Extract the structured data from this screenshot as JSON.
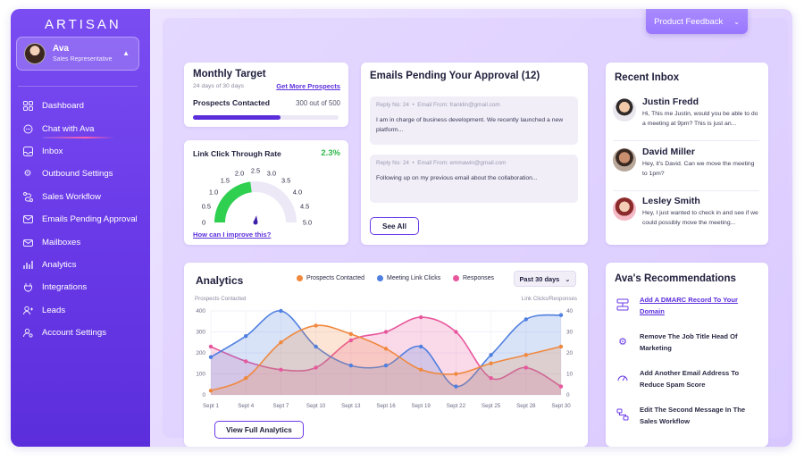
{
  "app": {
    "logo": "ARTISAN"
  },
  "user": {
    "name": "Ava",
    "role": "Sales Representative"
  },
  "sidebar": {
    "items": [
      {
        "label": "Dashboard",
        "icon": "grid-icon"
      },
      {
        "label": "Chat with Ava",
        "icon": "chat-icon",
        "active": true
      },
      {
        "label": "Inbox",
        "icon": "inbox-icon"
      },
      {
        "label": "Outbound Settings",
        "icon": "gear-icon"
      },
      {
        "label": "Sales Workflow",
        "icon": "workflow-icon"
      },
      {
        "label": "Emails Pending Approval",
        "icon": "mail-check-icon"
      },
      {
        "label": "Mailboxes",
        "icon": "mailbox-icon"
      },
      {
        "label": "Analytics",
        "icon": "analytics-icon"
      },
      {
        "label": "Integrations",
        "icon": "integrations-icon"
      },
      {
        "label": "Leads",
        "icon": "leads-icon"
      },
      {
        "label": "Account Settings",
        "icon": "account-gear-icon"
      }
    ]
  },
  "header": {
    "feedback_button": "Product Feedback"
  },
  "monthly_target": {
    "title": "Monthly Target",
    "subtitle": "24 days of 30 days",
    "link": "Get More Prospects",
    "metric_label": "Prospects Contacted",
    "metric_value": "300 out of 500",
    "progress": 0.6
  },
  "ctr": {
    "title": "Link Click Through Rate",
    "value": "2.3%",
    "gauge_value": 2.3,
    "gauge_max": 5.0,
    "ticks": [
      "0",
      "0.5",
      "1.0",
      "1.5",
      "2.0",
      "2.5",
      "3.0",
      "3.5",
      "4.0",
      "4.5",
      "5.0"
    ],
    "help_link": "How can I improve this?"
  },
  "emails_pending": {
    "title": "Emails Pending Your Approval (12)",
    "items": [
      {
        "reply_no": "Reply No: 24",
        "from": "Email From: franklin@gmail.com",
        "body": "I am in charge of business development. We recently launched a new platform..."
      },
      {
        "reply_no": "Reply No: 24",
        "from": "Email From: emmawin@gmail.com",
        "body": "Following up on my previous email about the collaboration..."
      }
    ],
    "see_all": "See All"
  },
  "inbox": {
    "title": "Recent Inbox",
    "items": [
      {
        "name": "Justin Fredd",
        "message": "Hi, This me Justin, would you be able to do a meeting at 9pm? This is just an..."
      },
      {
        "name": "David Miller",
        "message": "Hey, it's David. Can we move the meeting to 1pm?"
      },
      {
        "name": "Lesley Smith",
        "message": "Hey, I just wanted to check in and see if we could possibly move the meeting..."
      }
    ]
  },
  "analytics": {
    "title": "Analytics",
    "range_select": "Past 30 days",
    "cta": "View Full Analytics",
    "left_axis_label": "Prospects Contacted",
    "right_axis_label": "Link Clicks/Responses",
    "legend": [
      {
        "name": "Prospects Contacted",
        "color": "#f0883e"
      },
      {
        "name": "Meeting Link Clicks",
        "color": "#4f7fe0"
      },
      {
        "name": "Responses",
        "color": "#e8579c"
      }
    ]
  },
  "chart_data": {
    "type": "area",
    "x": [
      "Sept 1",
      "Sept 4",
      "Sept 7",
      "Sept 10",
      "Sept 13",
      "Sept 16",
      "Sept 19",
      "Sept 22",
      "Sept 25",
      "Sept 28",
      "Sept 30"
    ],
    "y_left_ticks": [
      0,
      100,
      200,
      300,
      400
    ],
    "y_right_ticks": [
      0,
      10,
      20,
      30,
      40
    ],
    "ylim_left": [
      0,
      400
    ],
    "ylim_right": [
      0,
      40
    ],
    "series": [
      {
        "name": "Prospects Contacted",
        "axis": "left",
        "color": "#f0883e",
        "values": [
          20,
          80,
          250,
          330,
          290,
          220,
          120,
          100,
          150,
          190,
          230
        ]
      },
      {
        "name": "Meeting Link Clicks",
        "axis": "right",
        "color": "#4f7fe0",
        "values": [
          18,
          28,
          40,
          23,
          14,
          14,
          23,
          4,
          19,
          36,
          38
        ]
      },
      {
        "name": "Responses",
        "axis": "right",
        "color": "#e8579c",
        "values": [
          23,
          16,
          12,
          13,
          26,
          30,
          37,
          30,
          8,
          13,
          4
        ]
      }
    ]
  },
  "recommendations": {
    "title": "Ava's Recommendations",
    "items": [
      {
        "text": "Add A DMARC Record To Your Domain",
        "icon": "dns-record-icon",
        "link": true
      },
      {
        "text": "Remove The Job Title Head Of Marketing",
        "icon": "settings-icon",
        "link": false
      },
      {
        "text": "Add Another Email Address To Reduce Spam Score",
        "icon": "speedometer-icon",
        "link": false
      },
      {
        "text": "Edit The Second Message In The Sales Workflow",
        "icon": "flow-icon",
        "link": false
      }
    ]
  }
}
